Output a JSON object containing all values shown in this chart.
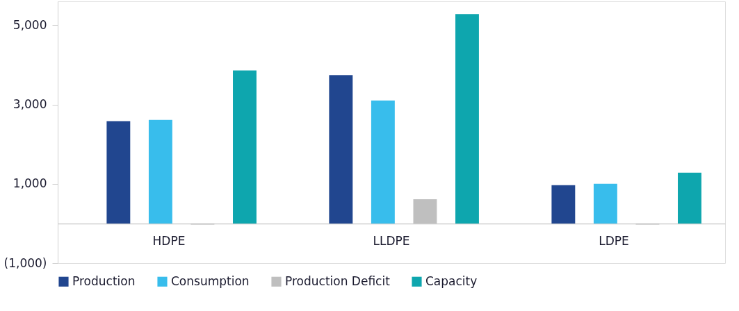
{
  "chart_data": {
    "type": "bar",
    "categories": [
      "HDPE",
      "LLDPE",
      "LDPE"
    ],
    "series": [
      {
        "name": "Production",
        "color": "#21468f",
        "values": [
          2580,
          3740,
          965
        ]
      },
      {
        "name": "Consumption",
        "color": "#38bdec",
        "values": [
          2610,
          3100,
          1000
        ]
      },
      {
        "name": "Production Deficit",
        "color": "#bfbfbf",
        "values": [
          -30,
          610,
          -30
        ]
      },
      {
        "name": "Capacity",
        "color": "#0ea6ae",
        "values": [
          3860,
          5280,
          1280
        ]
      }
    ],
    "ylim": [
      -1000,
      5600
    ],
    "yticks": [
      {
        "value": -1000,
        "label": "(1,000)"
      },
      {
        "value": 1000,
        "label": "1,000"
      },
      {
        "value": 3000,
        "label": "3,000"
      },
      {
        "value": 5000,
        "label": "5,000"
      }
    ],
    "grid": false,
    "legend": "bottom"
  }
}
